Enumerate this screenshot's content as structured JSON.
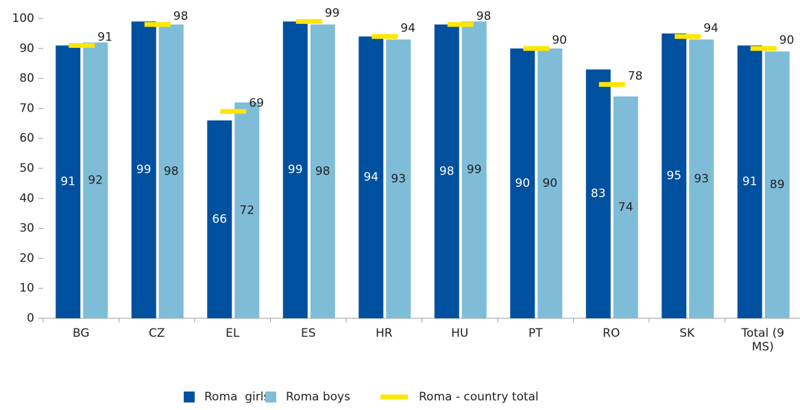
{
  "chart_data": {
    "type": "bar",
    "categories": [
      "BG",
      "CZ",
      "EL",
      "ES",
      "HR",
      "HU",
      "PT",
      "RO",
      "SK",
      "Total (9 MS)"
    ],
    "series": [
      {
        "name": "Roma  girls",
        "color": "#0050a0",
        "values": [
          91,
          99,
          66,
          99,
          94,
          98,
          90,
          83,
          95,
          91
        ]
      },
      {
        "name": "Roma boys",
        "color": "#7fbcd8",
        "values": [
          92,
          98,
          72,
          98,
          93,
          99,
          90,
          74,
          93,
          89
        ]
      },
      {
        "name": "Roma - country total",
        "color": "#ffe600",
        "style": "marker",
        "values": [
          91,
          98,
          69,
          99,
          94,
          98,
          90,
          78,
          94,
          90
        ]
      }
    ],
    "ylim": [
      0,
      100
    ],
    "yticks": [
      0,
      10,
      20,
      30,
      40,
      50,
      60,
      70,
      80,
      90,
      100
    ],
    "legend": "bottom"
  }
}
